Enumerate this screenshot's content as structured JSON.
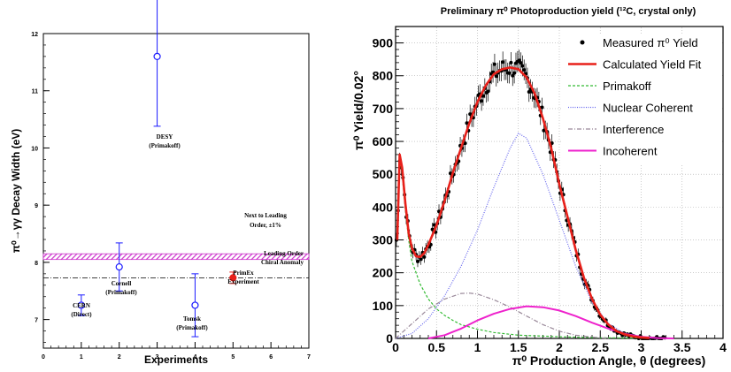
{
  "chart_data": [
    {
      "type": "scatter",
      "ylabel": "π⁰→γγ  Decay Width (eV)",
      "xlabel": "Experiments",
      "xlim": [
        0,
        7
      ],
      "ylim": [
        6.5,
        12
      ],
      "x_ticks": [
        "0",
        "1",
        "2",
        "3",
        "4",
        "5",
        "6",
        "7"
      ],
      "y_ticks": [
        "7",
        "8",
        "9",
        "10",
        "11",
        "12"
      ],
      "points": [
        {
          "x": 1,
          "y": 7.25,
          "err_lo": 0.18,
          "err_hi": 0.18,
          "label": [
            "CERN",
            "(Direct)"
          ],
          "color": "#1a1aff",
          "marker": "open-circle"
        },
        {
          "x": 2,
          "y": 7.92,
          "err_lo": 0.42,
          "err_hi": 0.42,
          "label": [
            "Cornell",
            "(Primakoff)"
          ],
          "color": "#1a1aff",
          "marker": "open-circle"
        },
        {
          "x": 3,
          "y": 11.6,
          "err_lo": 1.22,
          "err_hi": 1.22,
          "label": [
            "DESY",
            "(Primakoff)"
          ],
          "color": "#1a1aff",
          "marker": "open-circle"
        },
        {
          "x": 4,
          "y": 7.25,
          "err_lo": 0.55,
          "err_hi": 0.55,
          "label": [
            "Tomsk",
            "(Primakoff)"
          ],
          "color": "#1a1aff",
          "marker": "open-circle"
        },
        {
          "x": 5,
          "y": 7.73,
          "err_lo": 0.1,
          "err_hi": 0.1,
          "label": [
            "PrimEx",
            "Experiment"
          ],
          "color": "#e8201a",
          "marker": "filled-circle"
        }
      ],
      "band": {
        "y_low": 8.05,
        "y_high": 8.15,
        "color": "#cc33cc",
        "label": [
          "Next to Leading",
          "Order,   ±1%"
        ]
      },
      "line": {
        "y": 7.73,
        "style": "dash-dot",
        "label": [
          "Leading Order",
          "Chiral Anomaly"
        ]
      }
    },
    {
      "type": "line",
      "title": "Preliminary π⁰ Photoproduction yield (¹²C, crystal only)",
      "ylabel": "π⁰ Yield/0.02°",
      "xlabel": "π⁰ Production Angle, θ (degrees)",
      "xlim": [
        0,
        4
      ],
      "ylim": [
        0,
        950
      ],
      "x_ticks": [
        "0",
        "0.5",
        "1",
        "1.5",
        "2",
        "2.5",
        "3",
        "3.5",
        "4"
      ],
      "y_ticks": [
        "0",
        "100",
        "200",
        "300",
        "400",
        "500",
        "600",
        "700",
        "800",
        "900"
      ],
      "grid": true,
      "legend": {
        "position": "top-right"
      },
      "series": [
        {
          "name": "Measured π⁰ Yield",
          "kind": "points-with-errors",
          "color": "#000000"
        },
        {
          "name": "Calculated Yield Fit",
          "kind": "solid",
          "color": "#e8201a",
          "x": [
            0.02,
            0.05,
            0.08,
            0.12,
            0.16,
            0.2,
            0.25,
            0.3,
            0.35,
            0.4,
            0.5,
            0.6,
            0.7,
            0.8,
            0.9,
            1.0,
            1.1,
            1.2,
            1.3,
            1.4,
            1.5,
            1.6,
            1.7,
            1.8,
            1.9,
            2.0,
            2.1,
            2.2,
            2.3,
            2.4,
            2.5,
            2.6,
            2.7,
            2.8,
            2.9,
            3.0,
            3.1
          ],
          "y": [
            300,
            560,
            520,
            410,
            320,
            275,
            250,
            248,
            260,
            285,
            345,
            420,
            505,
            580,
            655,
            720,
            770,
            805,
            820,
            825,
            820,
            795,
            745,
            670,
            580,
            470,
            370,
            270,
            185,
            120,
            72,
            42,
            22,
            12,
            6,
            3,
            1
          ]
        },
        {
          "name": "Primakoff",
          "kind": "dashed",
          "color": "#33bb33",
          "x": [
            0.02,
            0.05,
            0.08,
            0.12,
            0.16,
            0.2,
            0.3,
            0.4,
            0.5,
            0.6,
            0.7,
            0.8,
            1.0,
            1.2,
            1.5,
            2.0,
            2.5,
            3.0
          ],
          "y": [
            300,
            560,
            500,
            390,
            300,
            235,
            165,
            120,
            90,
            70,
            55,
            42,
            28,
            18,
            10,
            5,
            2,
            1
          ]
        },
        {
          "name": "Nuclear Coherent",
          "kind": "dotted",
          "color": "#6666ee",
          "x": [
            0.0,
            0.2,
            0.4,
            0.6,
            0.8,
            1.0,
            1.2,
            1.4,
            1.5,
            1.6,
            1.8,
            2.0,
            2.2,
            2.4,
            2.6,
            2.8,
            3.0,
            3.2
          ],
          "y": [
            0,
            15,
            60,
            130,
            220,
            330,
            460,
            580,
            625,
            610,
            500,
            360,
            220,
            110,
            45,
            15,
            4,
            0
          ]
        },
        {
          "name": "Interference",
          "kind": "dash-dot",
          "color": "#998899",
          "x": [
            0.0,
            0.2,
            0.4,
            0.6,
            0.8,
            0.9,
            1.0,
            1.2,
            1.4,
            1.6,
            1.8,
            2.0,
            2.2,
            2.4,
            2.6
          ],
          "y": [
            0,
            45,
            90,
            120,
            137,
            138,
            135,
            118,
            95,
            68,
            42,
            22,
            10,
            4,
            0
          ]
        },
        {
          "name": "Incoherent",
          "kind": "solid",
          "color": "#ee22cc",
          "x": [
            0.4,
            0.6,
            0.8,
            1.0,
            1.2,
            1.4,
            1.6,
            1.8,
            2.0,
            2.2,
            2.4,
            2.6,
            2.8,
            3.0,
            3.2,
            3.4
          ],
          "y": [
            0,
            10,
            30,
            55,
            75,
            90,
            98,
            95,
            85,
            68,
            48,
            30,
            14,
            5,
            1,
            0
          ]
        }
      ]
    }
  ]
}
